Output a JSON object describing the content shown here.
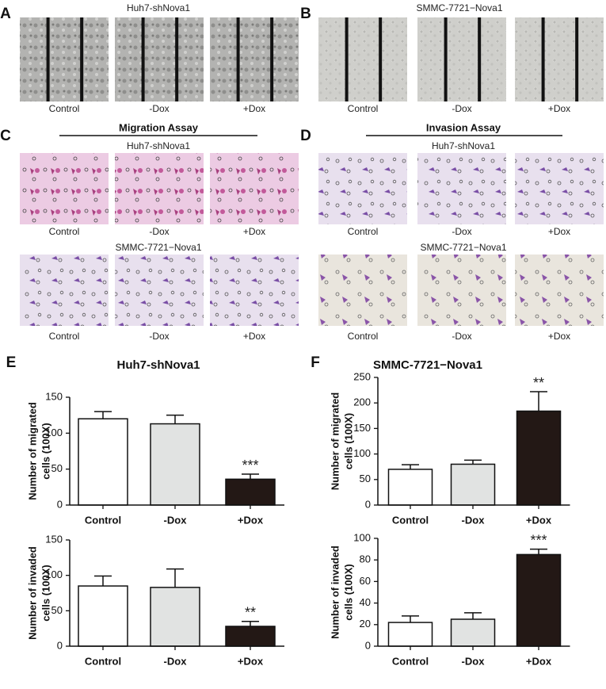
{
  "image_panels": [
    {
      "label": "A",
      "title": "Huh7-shNova1",
      "captions": [
        "Control",
        "-Dox",
        "+Dox"
      ]
    },
    {
      "label": "B",
      "title": "SMMC-7721−Nova1",
      "captions": [
        "Control",
        "-Dox",
        "+Dox"
      ]
    },
    {
      "label": "C",
      "title": "Migration Assay",
      "rows": [
        {
          "title": "Huh7-shNova1",
          "captions": [
            "Control",
            "-Dox",
            "+Dox"
          ]
        },
        {
          "title": "SMMC-7721−Nova1",
          "captions": [
            "Control",
            "-Dox",
            "+Dox"
          ]
        }
      ]
    },
    {
      "label": "D",
      "title": "Invasion Assay",
      "rows": [
        {
          "title": "Huh7-shNova1",
          "captions": [
            "Control",
            "-Dox",
            "+Dox"
          ]
        },
        {
          "title": "SMMC-7721−Nova1",
          "captions": [
            "Control",
            "-Dox",
            "+Dox"
          ]
        }
      ]
    }
  ],
  "chart_data": [
    {
      "type": "bar",
      "panel": "E",
      "title": "Huh7-shNova1",
      "ylabel": [
        "Number of migrated",
        "cells (100X)"
      ],
      "categories": [
        "Control",
        "-Dox",
        "+Dox"
      ],
      "values": [
        120,
        113,
        36
      ],
      "errors": [
        10,
        12,
        7
      ],
      "colors": [
        "#ffffff",
        "#e1e3e2",
        "#231815"
      ],
      "annotations": [
        null,
        null,
        "***"
      ],
      "ylim": [
        0,
        150
      ],
      "yticks": [
        0,
        50,
        100,
        150
      ]
    },
    {
      "type": "bar",
      "ylabel": [
        "Number of invaded",
        "cells (100X)"
      ],
      "categories": [
        "Control",
        "-Dox",
        "+Dox"
      ],
      "values": [
        85,
        83,
        28
      ],
      "errors": [
        14,
        26,
        7
      ],
      "colors": [
        "#ffffff",
        "#e1e3e2",
        "#231815"
      ],
      "annotations": [
        null,
        null,
        "**"
      ],
      "ylim": [
        0,
        150
      ],
      "yticks": [
        0,
        50,
        100,
        150
      ]
    },
    {
      "type": "bar",
      "panel": "F",
      "title": "SMMC-7721−Nova1",
      "ylabel": [
        "Number of migrated",
        "cells (100X)"
      ],
      "categories": [
        "Control",
        "-Dox",
        "+Dox"
      ],
      "values": [
        70,
        80,
        184
      ],
      "errors": [
        9,
        8,
        38
      ],
      "colors": [
        "#ffffff",
        "#e1e3e2",
        "#231815"
      ],
      "annotations": [
        null,
        null,
        "**"
      ],
      "ylim": [
        0,
        250
      ],
      "yticks": [
        0,
        50,
        100,
        150,
        200,
        250
      ]
    },
    {
      "type": "bar",
      "ylabel": [
        "Number of invaded",
        "cells (100X)"
      ],
      "categories": [
        "Control",
        "-Dox",
        "+Dox"
      ],
      "values": [
        22,
        25,
        85
      ],
      "errors": [
        6,
        6,
        5
      ],
      "colors": [
        "#ffffff",
        "#e1e3e2",
        "#231815"
      ],
      "annotations": [
        null,
        null,
        "***"
      ],
      "ylim": [
        0,
        100
      ],
      "yticks": [
        0,
        20,
        40,
        60,
        80,
        100
      ]
    }
  ]
}
